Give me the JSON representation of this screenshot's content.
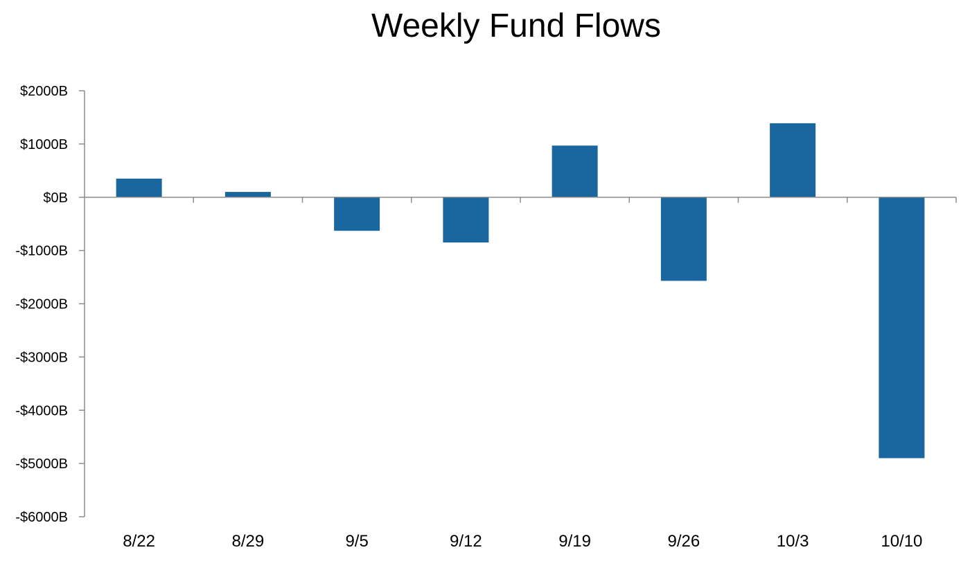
{
  "chart_data": {
    "type": "bar",
    "title": "Weekly Fund Flows",
    "xlabel": "",
    "ylabel": "",
    "categories": [
      "8/22",
      "8/29",
      "9/5",
      "9/12",
      "9/19",
      "9/26",
      "10/3",
      "10/10"
    ],
    "values": [
      350,
      100,
      -630,
      -850,
      970,
      -1570,
      1390,
      -4900
    ],
    "ylim": [
      -6000,
      2000
    ],
    "yticks": [
      2000,
      1000,
      0,
      -1000,
      -2000,
      -3000,
      -4000,
      -5000,
      -6000
    ],
    "ytick_labels": [
      "$2000B",
      "$1000B",
      "$0B",
      "-$1000B",
      "-$2000B",
      "-$3000B",
      "-$4000B",
      "-$5000B",
      "-$6000B"
    ],
    "grid": false,
    "legend": "none",
    "colors": {
      "bar": "#1a67a0",
      "axis": "#8c8c8c"
    }
  }
}
